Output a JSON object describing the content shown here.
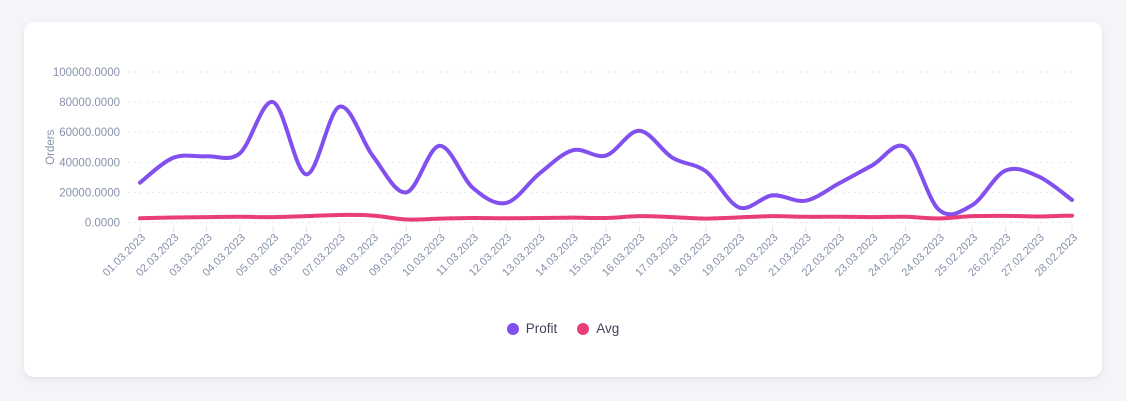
{
  "page": {
    "background_color": "#f4f5f8"
  },
  "card": {
    "background_color": "#ffffff"
  },
  "chart_data": {
    "type": "line",
    "title": "",
    "xlabel": "",
    "ylabel": "Orders",
    "ylim": [
      0,
      100000
    ],
    "grid": "horizontal-dotted",
    "curve": "smooth",
    "legend_position": "bottom",
    "axis_text_color": "#8691aa",
    "grid_color": "#e2e5ec",
    "y_ticks": [
      {
        "value": 0,
        "label": "0.0000"
      },
      {
        "value": 20000,
        "label": "20000.0000"
      },
      {
        "value": 40000,
        "label": "40000.0000"
      },
      {
        "value": 60000,
        "label": "60000.0000"
      },
      {
        "value": 80000,
        "label": "80000.0000"
      },
      {
        "value": 100000,
        "label": "100000.0000"
      }
    ],
    "categories": [
      "01.03.2023",
      "02.03.2023",
      "03.03.2023",
      "04.03.2023",
      "05.03.2023",
      "06.03.2023",
      "07.03.2023",
      "08.03.2023",
      "09.03.2023",
      "10.03.2023",
      "11.03.2023",
      "12.03.2023",
      "13.03.2023",
      "14.03.2023",
      "15.03.2023",
      "16.03.2023",
      "17.03.2023",
      "18.03.2023",
      "19.03.2023",
      "20.03.2023",
      "21.03.2023",
      "22.03.2023",
      "23.03.2023",
      "24.02.2023",
      "24.03.2023",
      "25.02.2023",
      "26.02.2023",
      "27.02.2023",
      "28.02.2023"
    ],
    "series": [
      {
        "name": "Profit",
        "color": "#8150ee",
        "stroke_width": 4,
        "values": [
          26500,
          43000,
          44000,
          46000,
          80000,
          32000,
          77000,
          44000,
          20000,
          51000,
          23000,
          13000,
          32500,
          48000,
          44500,
          61000,
          43000,
          34000,
          10000,
          18000,
          14500,
          26000,
          38000,
          50000,
          8500,
          11500,
          34500,
          30500,
          15000
        ]
      },
      {
        "name": "Avg",
        "color": "#e83e74",
        "stroke_width": 4,
        "values": [
          2800,
          3300,
          3600,
          3800,
          3600,
          4200,
          5000,
          4600,
          2000,
          2600,
          3000,
          2800,
          3000,
          3200,
          3000,
          4200,
          3600,
          2600,
          3400,
          4200,
          3800,
          3800,
          3600,
          3800,
          2700,
          4200,
          4400,
          4000,
          4600
        ]
      }
    ]
  },
  "legend": {
    "items": [
      {
        "label": "Profit",
        "color": "#8150ee"
      },
      {
        "label": "Avg",
        "color": "#e83e74"
      }
    ]
  }
}
